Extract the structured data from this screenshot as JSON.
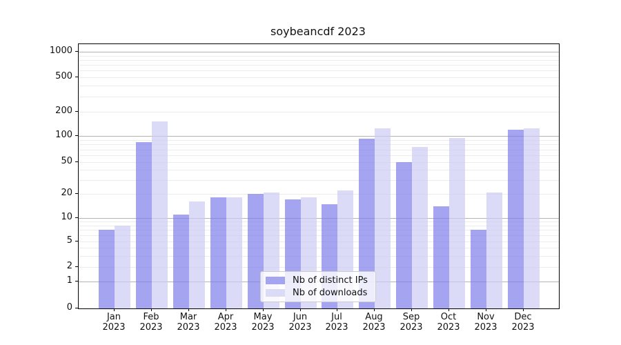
{
  "chart_data": {
    "type": "bar",
    "title": "soybeancdf 2023",
    "package": "soybeancdf",
    "year": "2023",
    "categories": [
      "Jan",
      "Feb",
      "Mar",
      "Apr",
      "May",
      "Jun",
      "Jul",
      "Aug",
      "Sep",
      "Oct",
      "Nov",
      "Dec"
    ],
    "x_tick_second_line": "2023",
    "series": [
      {
        "name": "Nb of distinct IPs",
        "color": "#a4a4f0",
        "values": [
          7,
          85,
          11,
          18,
          20,
          17,
          15,
          93,
          50,
          14,
          7,
          119
        ]
      },
      {
        "name": "Nb of downloads",
        "color": "#dbdbf7",
        "values": [
          8,
          153,
          16,
          18,
          21,
          18,
          22,
          125,
          75,
          95,
          21,
          125
        ]
      }
    ],
    "xlabel": "",
    "ylabel": "",
    "y_ticks": [
      0,
      1,
      2,
      5,
      10,
      20,
      50,
      100,
      200,
      500,
      1000
    ],
    "ylim": [
      0,
      1500
    ],
    "scale": "symlog",
    "grid": true,
    "legend_position": "lower-center-inside",
    "colors": {
      "major_gridline": "#b3b3b3",
      "minor_gridline": "#ececec",
      "axis_frame": "#000000",
      "text": "#111111"
    }
  }
}
